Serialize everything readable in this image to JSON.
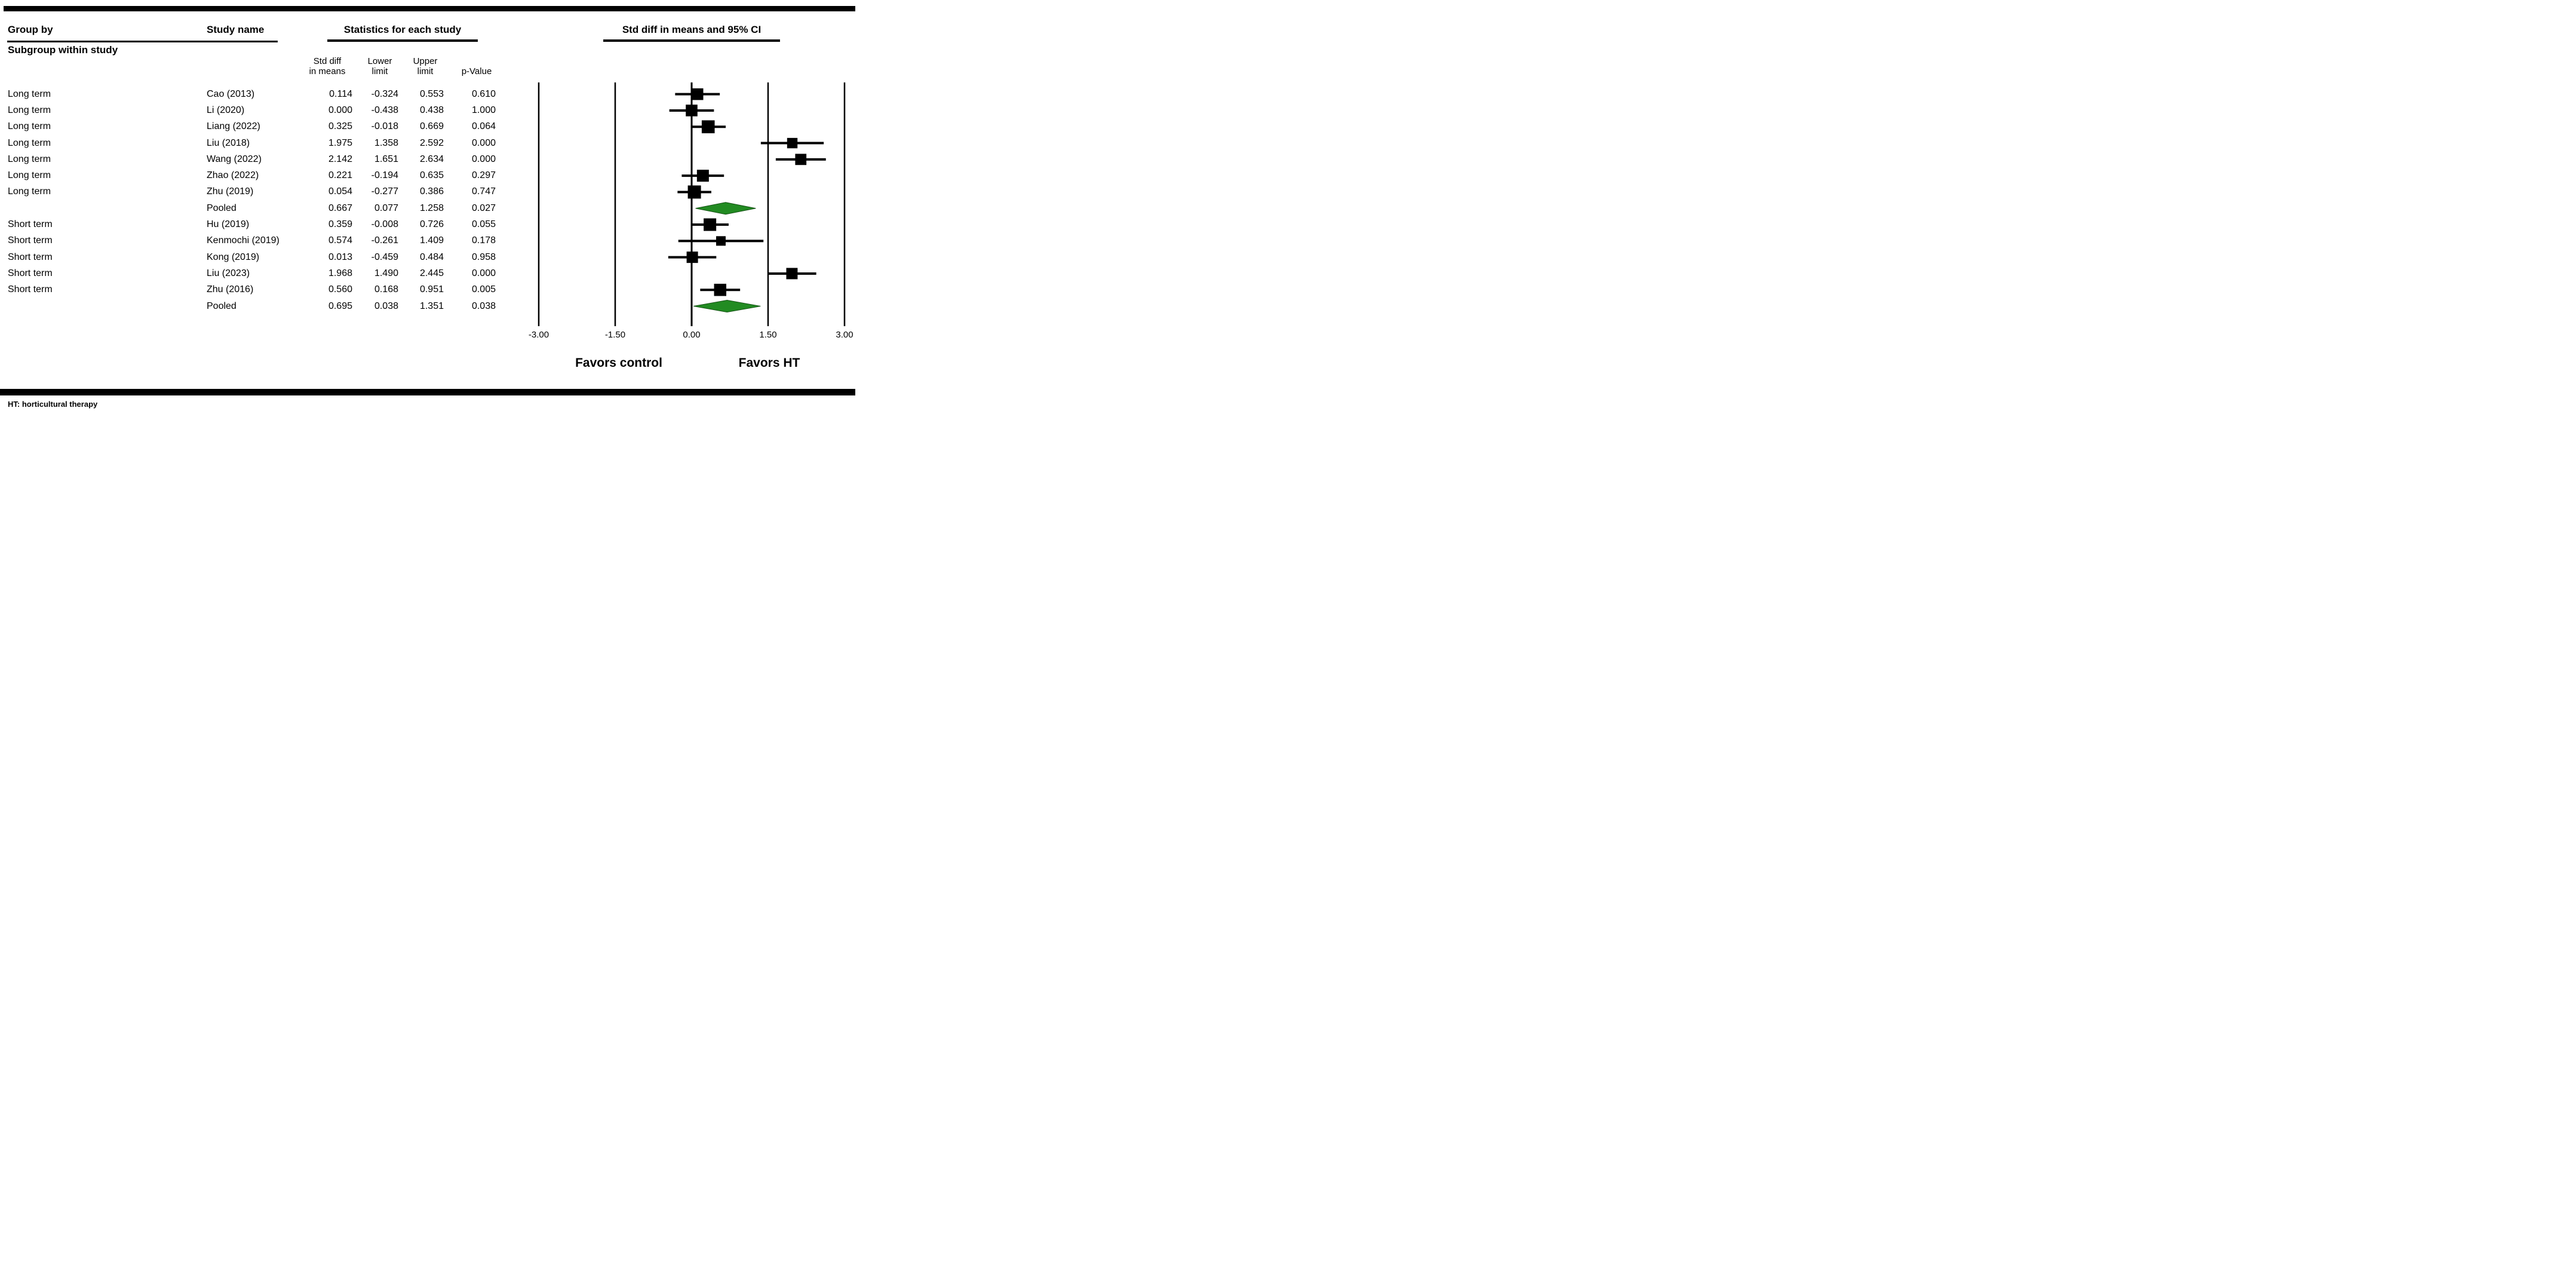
{
  "figure": {
    "group_by_label": "Group by",
    "subgroup_label": "Subgroup within study",
    "study_name_label": "Study name",
    "stats_title": "Statistics for each study",
    "plot_title": "Std diff in means and 95% CI",
    "col_headers": {
      "std_diff_line1": "Std diff",
      "std_diff_line2": "in means",
      "lower_line1": "Lower",
      "lower_line2": "limit",
      "upper_line1": "Upper",
      "upper_line2": "limit",
      "p_value": "p-Value"
    },
    "favors_left": "Favors control",
    "favors_right": "Favors HT",
    "footnote": "HT: horticultural therapy"
  },
  "chart_data": {
    "type": "forest",
    "title": "Std diff in means and 95% CI",
    "xlabel": "Std diff in means",
    "xlim": [
      -3,
      3
    ],
    "tick_values": [
      -3,
      -1.5,
      0,
      1.5,
      3
    ],
    "tick_labels": [
      "-3.00",
      "-1.50",
      "0.00",
      "1.50",
      "3.00"
    ],
    "favors_left": "Favors control",
    "favors_right": "Favors HT",
    "marker_color": "#000000",
    "diamond_color": "#228B22",
    "diamond_border_color": "#145214",
    "rows": [
      {
        "group": "Long term",
        "study": "Cao (2013)",
        "mean": 0.114,
        "lower": -0.324,
        "upper": 0.553,
        "p": 0.61,
        "kind": "study"
      },
      {
        "group": "Long term",
        "study": "Li (2020)",
        "mean": 0.0,
        "lower": -0.438,
        "upper": 0.438,
        "p": 1.0,
        "kind": "study"
      },
      {
        "group": "Long term",
        "study": "Liang (2022)",
        "mean": 0.325,
        "lower": -0.018,
        "upper": 0.669,
        "p": 0.064,
        "kind": "study"
      },
      {
        "group": "Long term",
        "study": "Liu (2018)",
        "mean": 1.975,
        "lower": 1.358,
        "upper": 2.592,
        "p": 0.0,
        "kind": "study"
      },
      {
        "group": "Long term",
        "study": "Wang (2022)",
        "mean": 2.142,
        "lower": 1.651,
        "upper": 2.634,
        "p": 0.0,
        "kind": "study"
      },
      {
        "group": "Long term",
        "study": "Zhao (2022)",
        "mean": 0.221,
        "lower": -0.194,
        "upper": 0.635,
        "p": 0.297,
        "kind": "study"
      },
      {
        "group": "Long term",
        "study": "Zhu (2019)",
        "mean": 0.054,
        "lower": -0.277,
        "upper": 0.386,
        "p": 0.747,
        "kind": "study"
      },
      {
        "group": "",
        "study": "Pooled",
        "mean": 0.667,
        "lower": 0.077,
        "upper": 1.258,
        "p": 0.027,
        "kind": "pooled"
      },
      {
        "group": "Short term",
        "study": "Hu (2019)",
        "mean": 0.359,
        "lower": -0.008,
        "upper": 0.726,
        "p": 0.055,
        "kind": "study"
      },
      {
        "group": "Short term",
        "study": "Kenmochi (2019)",
        "mean": 0.574,
        "lower": -0.261,
        "upper": 1.409,
        "p": 0.178,
        "kind": "study"
      },
      {
        "group": "Short term",
        "study": "Kong (2019)",
        "mean": 0.013,
        "lower": -0.459,
        "upper": 0.484,
        "p": 0.958,
        "kind": "study"
      },
      {
        "group": "Short term",
        "study": "Liu (2023)",
        "mean": 1.968,
        "lower": 1.49,
        "upper": 2.445,
        "p": 0.0,
        "kind": "study"
      },
      {
        "group": "Short term",
        "study": "Zhu (2016)",
        "mean": 0.56,
        "lower": 0.168,
        "upper": 0.951,
        "p": 0.005,
        "kind": "study"
      },
      {
        "group": "",
        "study": "Pooled",
        "mean": 0.695,
        "lower": 0.038,
        "upper": 1.351,
        "p": 0.038,
        "kind": "pooled"
      }
    ]
  }
}
